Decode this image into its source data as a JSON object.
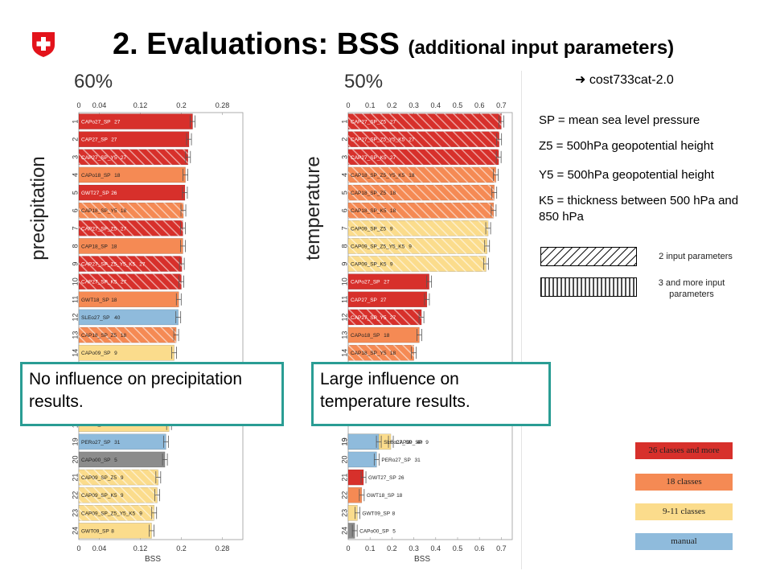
{
  "header": {
    "title": "2. Evaluations: BSS",
    "subtitle": "(additional input parameters)",
    "logo_icon": "swiss-cross-icon"
  },
  "colors": {
    "red": "#d7302b",
    "orange": "#f58a54",
    "yellow": "#fbdc8c",
    "blue": "#8fbbdc",
    "grey": "#8c8c8c",
    "teal": "#2a9d94"
  },
  "right_panel": {
    "cost_label": "cost733cat-2.0",
    "definitions": [
      "SP = mean sea level pressure",
      "Z5 = 500hPa geopotential height",
      "Y5 = 500hPa geopotential height",
      "K5 = thickness between 500 hPa and 850 hPa"
    ],
    "hatch_2": "2 input parameters",
    "hatch_3": "3 and more input parameters",
    "class_legend": [
      {
        "label": "26 classes and more",
        "color": "#d7302b"
      },
      {
        "label": "18 classes",
        "color": "#f58a54"
      },
      {
        "label": "9-11 classes",
        "color": "#fbdc8c"
      },
      {
        "label": "manual",
        "color": "#8fbbdc"
      }
    ]
  },
  "notes": {
    "left": "No influence on precipitation results.",
    "right": "Large influence on temperature results."
  },
  "chart_data": [
    {
      "type": "bar",
      "orientation": "horizontal",
      "percent_label": "60%",
      "side_label": "precipitation",
      "xlabel": "BSS",
      "xlim": [
        0,
        0.32
      ],
      "xticks": [
        "0",
        "0.04",
        "0.12",
        "0.2",
        "0.28"
      ],
      "xtick_values": [
        0,
        0.04,
        0.12,
        0.2,
        0.28
      ],
      "bars": [
        {
          "rank": "1",
          "label": "CAPo27_SP",
          "classes": "27",
          "value": 0.222,
          "color": "red",
          "hatch": "none"
        },
        {
          "rank": "2",
          "label": "CAP27_SP",
          "classes": "27",
          "value": 0.215,
          "color": "red",
          "hatch": "none"
        },
        {
          "rank": "3",
          "label": "CAP27_SP_Y5",
          "classes": "27",
          "value": 0.213,
          "color": "red",
          "hatch": "diag"
        },
        {
          "rank": "4",
          "label": "CAPo18_SP",
          "classes": "18",
          "value": 0.208,
          "color": "orange",
          "hatch": "none"
        },
        {
          "rank": "5",
          "label": "GWT27_SP",
          "classes": "26",
          "value": 0.207,
          "color": "red",
          "hatch": "none"
        },
        {
          "rank": "6",
          "label": "CAP18_SP_Y5",
          "classes": "18",
          "value": 0.204,
          "color": "orange",
          "hatch": "diag"
        },
        {
          "rank": "7",
          "label": "CAP27_SP_Z5",
          "classes": "27",
          "value": 0.203,
          "color": "red",
          "hatch": "diag"
        },
        {
          "rank": "8",
          "label": "CAP18_SP",
          "classes": "18",
          "value": 0.203,
          "color": "orange",
          "hatch": "none"
        },
        {
          "rank": "9",
          "label": "CAP27_SP_Z5_Y5_K5",
          "classes": "27",
          "value": 0.201,
          "color": "red",
          "hatch": "diag"
        },
        {
          "rank": "10",
          "label": "CAP27_SP_K5",
          "classes": "27",
          "value": 0.2,
          "color": "red",
          "hatch": "diag"
        },
        {
          "rank": "11",
          "label": "GWT18_SP",
          "classes": "18",
          "value": 0.195,
          "color": "orange",
          "hatch": "none"
        },
        {
          "rank": "12",
          "label": "SLEo27_SP",
          "classes": "40",
          "value": 0.194,
          "color": "blue",
          "hatch": "none"
        },
        {
          "rank": "13",
          "label": "CAP18_SP_Z5",
          "classes": "18",
          "value": 0.19,
          "color": "orange",
          "hatch": "diag"
        },
        {
          "rank": "14",
          "label": "CAPo09_SP",
          "classes": "9",
          "value": 0.186,
          "color": "yellow",
          "hatch": "none"
        },
        {
          "rank": "18",
          "label": "CAP09_SP",
          "classes": "9",
          "value": 0.176,
          "color": "yellow",
          "hatch": "none"
        },
        {
          "rank": "19",
          "label": "PERo27_SP",
          "classes": "31",
          "value": 0.17,
          "color": "blue",
          "hatch": "none"
        },
        {
          "rank": "20",
          "label": "CAPo00_SP",
          "classes": "5",
          "value": 0.168,
          "color": "grey",
          "hatch": "none"
        },
        {
          "rank": "21",
          "label": "CAP09_SP_Z5",
          "classes": "9",
          "value": 0.155,
          "color": "yellow",
          "hatch": "diag"
        },
        {
          "rank": "22",
          "label": "CAP09_SP_K5",
          "classes": "9",
          "value": 0.153,
          "color": "yellow",
          "hatch": "diag"
        },
        {
          "rank": "23",
          "label": "CAP09_SP_Z5_Y5_K5",
          "classes": "9",
          "value": 0.147,
          "color": "yellow",
          "hatch": "diag"
        },
        {
          "rank": "24",
          "label": "GWT09_SP",
          "classes": "8",
          "value": 0.142,
          "color": "yellow",
          "hatch": "none"
        }
      ]
    },
    {
      "type": "bar",
      "orientation": "horizontal",
      "percent_label": "50%",
      "side_label": "temperature",
      "xlabel": "BSS",
      "xlim": [
        0,
        0.75
      ],
      "xticks": [
        "0",
        "0.1",
        "0.2",
        "0.3",
        "0.4",
        "0.5",
        "0.6",
        "0.7"
      ],
      "xtick_values": [
        0,
        0.1,
        0.2,
        0.3,
        0.4,
        0.5,
        0.6,
        0.7
      ],
      "bars": [
        {
          "rank": "1",
          "label": "CAP27_SP_Z5",
          "classes": "27",
          "value": 0.7,
          "color": "red",
          "hatch": "diag"
        },
        {
          "rank": "2",
          "label": "CAP27_SP_Z5_Y5_K5",
          "classes": "27",
          "value": 0.69,
          "color": "red",
          "hatch": "diag"
        },
        {
          "rank": "3",
          "label": "CAP27_SP_K5",
          "classes": "27",
          "value": 0.688,
          "color": "red",
          "hatch": "diag"
        },
        {
          "rank": "4",
          "label": "CAP18_SP_Z5_Y5_K5",
          "classes": "18",
          "value": 0.675,
          "color": "orange",
          "hatch": "diag"
        },
        {
          "rank": "5",
          "label": "CAP18_SP_Z5",
          "classes": "18",
          "value": 0.668,
          "color": "orange",
          "hatch": "diag"
        },
        {
          "rank": "6",
          "label": "CAP18_SP_K5",
          "classes": "18",
          "value": 0.665,
          "color": "orange",
          "hatch": "diag"
        },
        {
          "rank": "7",
          "label": "CAP09_SP_Z5",
          "classes": "9",
          "value": 0.64,
          "color": "yellow",
          "hatch": "diag"
        },
        {
          "rank": "8",
          "label": "CAP09_SP_Z5_Y5_K5",
          "classes": "9",
          "value": 0.635,
          "color": "yellow",
          "hatch": "diag"
        },
        {
          "rank": "9",
          "label": "CAP09_SP_K5",
          "classes": "9",
          "value": 0.63,
          "color": "yellow",
          "hatch": "diag"
        },
        {
          "rank": "10",
          "label": "CAPo27_SP",
          "classes": "27",
          "value": 0.37,
          "color": "red",
          "hatch": "none"
        },
        {
          "rank": "11",
          "label": "CAP27_SP",
          "classes": "27",
          "value": 0.36,
          "color": "red",
          "hatch": "none"
        },
        {
          "rank": "12",
          "label": "CAP27_SP_Y5",
          "classes": "27",
          "value": 0.335,
          "color": "red",
          "hatch": "diag"
        },
        {
          "rank": "13",
          "label": "CAPo18_SP",
          "classes": "18",
          "value": 0.325,
          "color": "orange",
          "hatch": "none"
        },
        {
          "rank": "14",
          "label": "CAP18_SP_Y5",
          "classes": "18",
          "value": 0.3,
          "color": "orange",
          "hatch": "diag"
        },
        {
          "rank": "19",
          "label": "CAP09_SP",
          "classes": "9",
          "value": 0.195,
          "color": "yellow",
          "hatch": "none"
        },
        {
          "rank": "19",
          "label": "SLEo27_SP",
          "classes": "40",
          "value": 0.14,
          "color": "blue",
          "hatch": "none"
        },
        {
          "rank": "20",
          "label": "PERo27_SP",
          "classes": "31",
          "value": 0.13,
          "color": "blue",
          "hatch": "none"
        },
        {
          "rank": "21",
          "label": "GWT27_SP",
          "classes": "26",
          "value": 0.07,
          "color": "red",
          "hatch": "none"
        },
        {
          "rank": "22",
          "label": "GWT18_SP",
          "classes": "18",
          "value": 0.062,
          "color": "orange",
          "hatch": "none"
        },
        {
          "rank": "23",
          "label": "GWT09_SP",
          "classes": "8",
          "value": 0.042,
          "color": "yellow",
          "hatch": "none"
        },
        {
          "rank": "24",
          "label": "CAPo00_SP",
          "classes": "5",
          "value": 0.03,
          "color": "grey",
          "hatch": "none"
        }
      ]
    }
  ]
}
